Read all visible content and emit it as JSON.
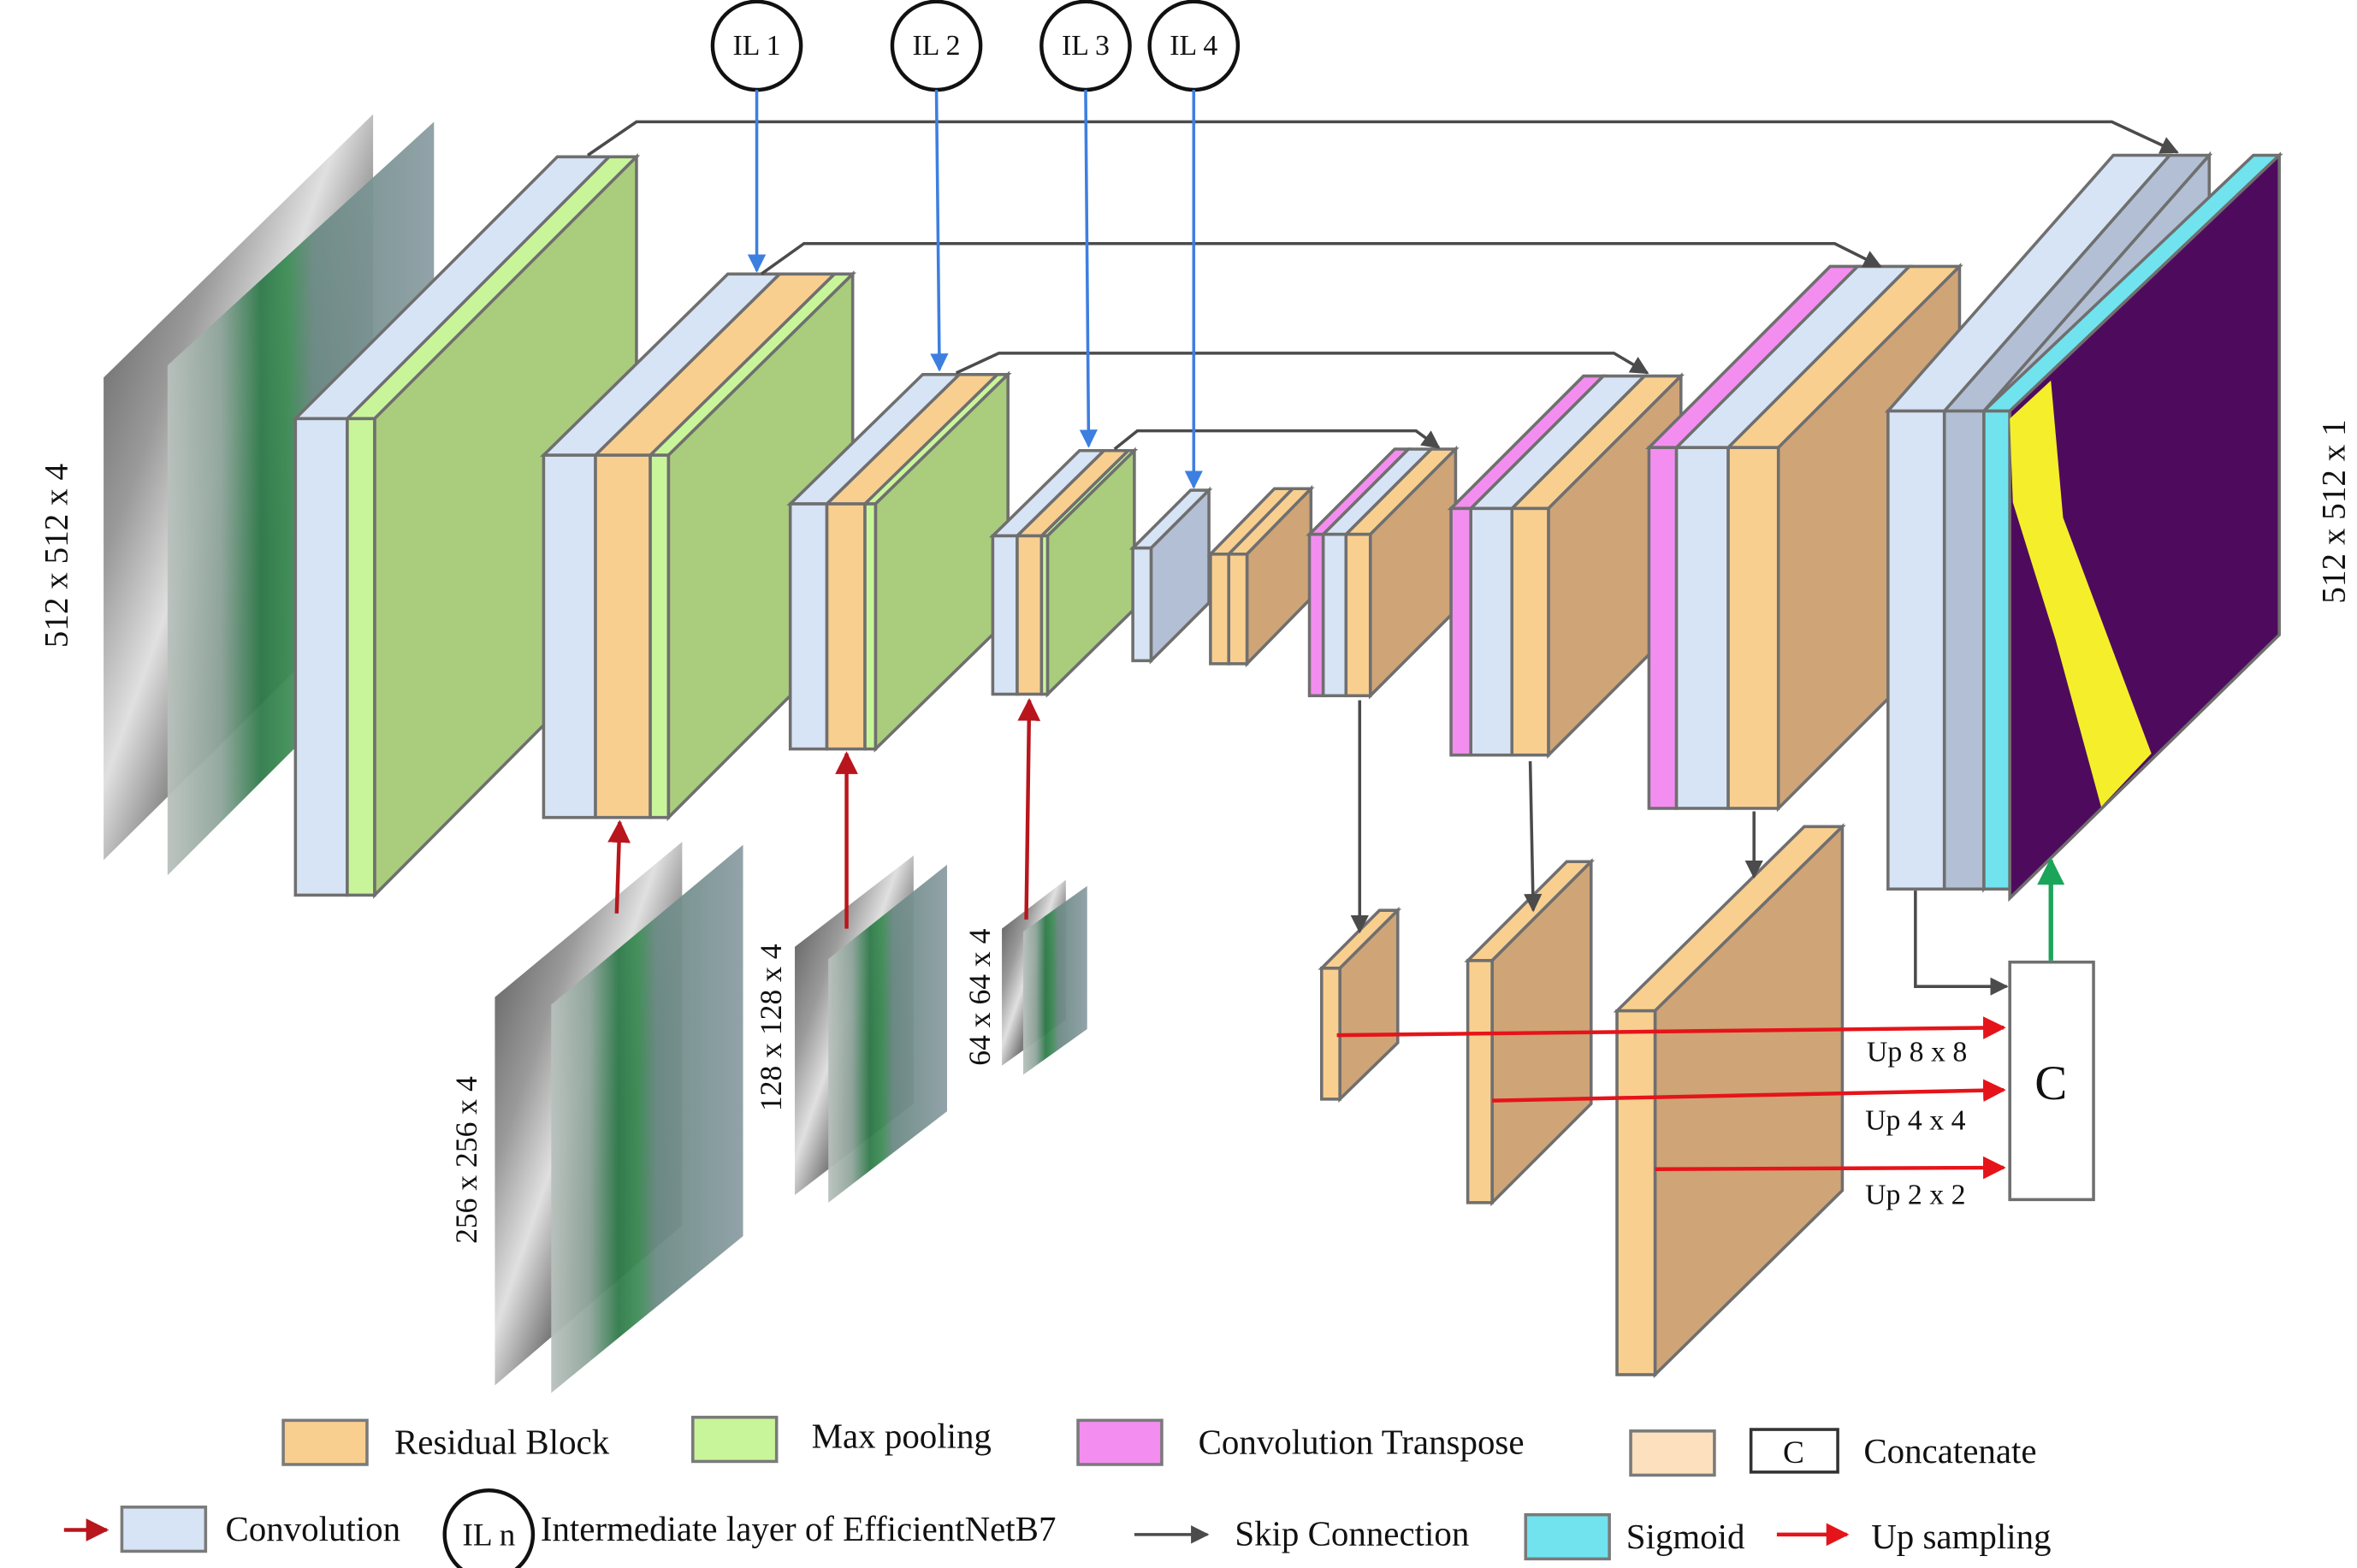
{
  "input_labels": {
    "main": "512 x 512 x 4",
    "scale_256": "256 x 256 x 4",
    "scale_128": "128 x 128 x 4",
    "scale_64": "64 x 64 x 4",
    "output": "512 x 512 x 1"
  },
  "intermediate_layers": [
    "IL 1",
    "IL 2",
    "IL 3",
    "IL 4"
  ],
  "upsampling": {
    "up8": "Up 8 x 8",
    "up4": "Up 4 x 4",
    "up2": "Up 2 x 2"
  },
  "concat_symbol": "C",
  "legend": {
    "residual_block": "Residual Block",
    "max_pooling": "Max pooling",
    "conv_transpose": "Convolution Transpose",
    "concat_symbol": "C",
    "concatenate": "Concatenate",
    "convolution": "Convolution",
    "il_symbol": "IL n",
    "intermediate_layer": "Intermediate layer of EfficientNetB7",
    "skip_connection": "Skip Connection",
    "sigmoid": "Sigmoid",
    "up_sampling": "Up sampling"
  },
  "colors": {
    "residual": "#f9cf90",
    "residual_side": "#cfa477",
    "maxpool": "#a9cd7c",
    "maxpool_front": "#c9f59a",
    "conv_transpose": "#f38ef0",
    "convolution": "#d7e4f6",
    "bottleneck": "#b3bfd4",
    "concat_legend": "#fde0bd",
    "sigmoid": "#70e3ef",
    "output_mask": "#4e0b5e",
    "output_road": "#f4ef2a",
    "skip_arrow": "#4b4b4b",
    "il_arrow": "#3d7fe0",
    "input_arrow": "#b8161c",
    "upsample_arrow": "#e5141a",
    "output_arrow": "#1ba55a"
  }
}
